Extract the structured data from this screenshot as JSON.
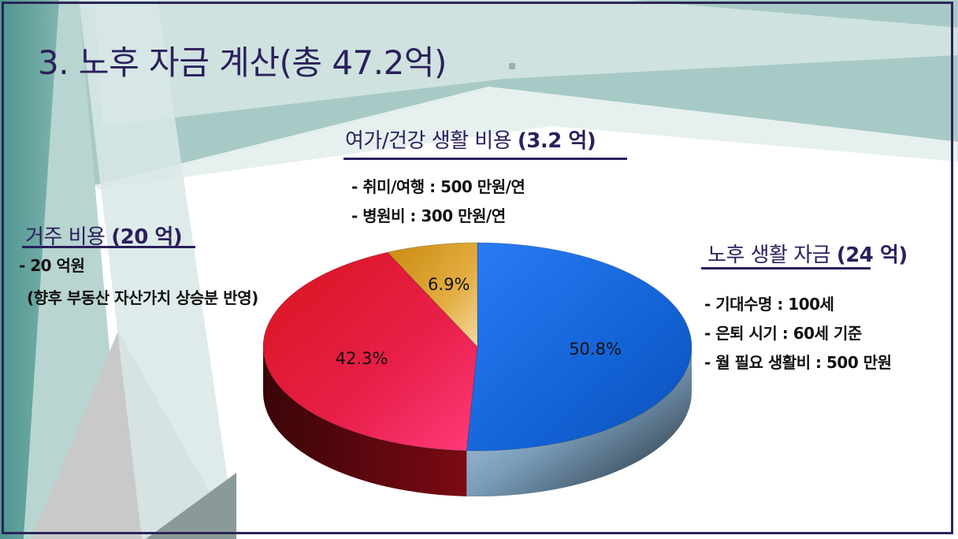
{
  "title": "3. 노후 자금 계산(총 47.2억)",
  "leisure": {
    "heading": "여가/건강 생활 비용",
    "amount": "(3.2 억)",
    "items": [
      "- 취미/여행 : 500 만원/연",
      "- 병원비 : 300 만원/연"
    ]
  },
  "housing": {
    "heading": "거주 비용",
    "amount": "(20 억)",
    "items": [
      "- 20 억원"
    ],
    "note": "(향후 부동산 자산가치 상승분 반영)"
  },
  "living": {
    "heading": "노후 생활 자금",
    "amount": "(24 억)",
    "items": [
      "- 기대수명 : 100세",
      "- 은퇴 시기 : 60세 기준",
      "- 월 필요 생활비 : 500 만원"
    ]
  },
  "chart_data": {
    "type": "pie",
    "values": [
      50.8,
      42.3,
      6.9
    ],
    "labels": [
      "50.8%",
      "42.3%",
      "6.9%"
    ],
    "colors": [
      "#1f6fe0",
      "#e8204a",
      "#e0a92a"
    ]
  }
}
